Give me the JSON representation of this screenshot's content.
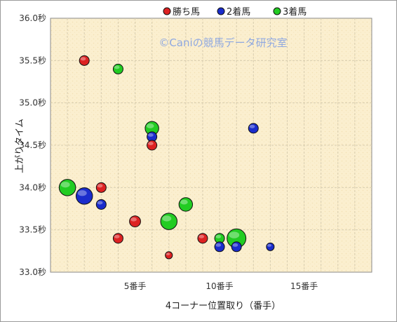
{
  "chart_data": {
    "type": "scatter",
    "title": "",
    "xlabel": "4コーナー位置取り（番手）",
    "ylabel": "上がりタイム",
    "watermark": "©Caniの競馬データ研究室",
    "xlim": [
      0,
      19
    ],
    "ylim": [
      33.0,
      36.0
    ],
    "x_ticks": [
      {
        "value": 5,
        "label": "5番手"
      },
      {
        "value": 10,
        "label": "10番手"
      },
      {
        "value": 15,
        "label": "15番手"
      }
    ],
    "y_ticks": [
      {
        "value": 33.0,
        "label": "33.0秒"
      },
      {
        "value": 33.5,
        "label": "33.5秒"
      },
      {
        "value": 34.0,
        "label": "34.0秒"
      },
      {
        "value": 34.5,
        "label": "34.5秒"
      },
      {
        "value": 35.0,
        "label": "35.0秒"
      },
      {
        "value": 35.5,
        "label": "35.5秒"
      },
      {
        "value": 36.0,
        "label": "36.0秒"
      }
    ],
    "grid": true,
    "legend_position": "top",
    "series": [
      {
        "name": "3着馬",
        "color": "#22cc22",
        "points": [
          {
            "x": 1,
            "y": 34.0,
            "size": 3
          },
          {
            "x": 4,
            "y": 35.4,
            "size": 1
          },
          {
            "x": 6,
            "y": 34.7,
            "size": 2
          },
          {
            "x": 7,
            "y": 33.6,
            "size": 3
          },
          {
            "x": 8,
            "y": 33.8,
            "size": 2
          },
          {
            "x": 10,
            "y": 33.4,
            "size": 1
          },
          {
            "x": 11,
            "y": 33.4,
            "size": 4
          }
        ]
      },
      {
        "name": "2着馬",
        "color": "#1a2ccc",
        "points": [
          {
            "x": 2,
            "y": 33.9,
            "size": 3
          },
          {
            "x": 3,
            "y": 33.8,
            "size": 1
          },
          {
            "x": 6,
            "y": 34.6,
            "size": 1
          },
          {
            "x": 10,
            "y": 33.3,
            "size": 1
          },
          {
            "x": 11,
            "y": 33.3,
            "size": 1
          },
          {
            "x": 12,
            "y": 34.7,
            "size": 1
          },
          {
            "x": 13,
            "y": 33.3,
            "size": 0.6
          }
        ]
      },
      {
        "name": "勝ち馬",
        "color": "#dd2222",
        "points": [
          {
            "x": 2,
            "y": 35.5,
            "size": 1
          },
          {
            "x": 3,
            "y": 34.0,
            "size": 1
          },
          {
            "x": 4,
            "y": 33.4,
            "size": 1
          },
          {
            "x": 5,
            "y": 33.6,
            "size": 1.3
          },
          {
            "x": 6,
            "y": 34.5,
            "size": 1
          },
          {
            "x": 7,
            "y": 33.2,
            "size": 0.5
          },
          {
            "x": 9,
            "y": 33.4,
            "size": 1
          }
        ]
      }
    ]
  }
}
